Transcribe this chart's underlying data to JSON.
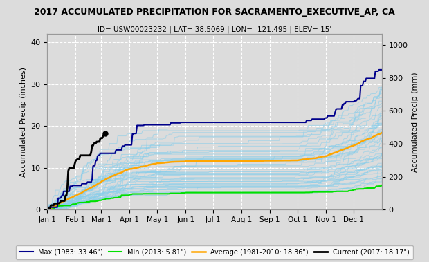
{
  "title": "2017 ACCUMULATED PRECIPITATION FOR SACRAMENTO_EXECUTIVE_AP, CA",
  "subtitle": "ID= USW00023232 | LAT= 38.5069 | LON= -121.495 | ELEV= 15'",
  "ylabel_left": "Accumulated Precip (inches)",
  "ylabel_right": "Accumulated Precip (mm)",
  "ylim_inches": [
    0,
    42
  ],
  "yticks_inches": [
    0,
    10,
    20,
    30,
    40
  ],
  "yticks_mm": [
    0,
    200,
    400,
    600,
    800,
    1000
  ],
  "bg_color": "#dcdcdc",
  "grid_color": "#ffffff",
  "inches_to_mm": 25.4,
  "legend": [
    {
      "label": "Max (1983: 33.46\")",
      "color": "#00008B",
      "lw": 1.5
    },
    {
      "label": "Min (2013: 5.81\")",
      "color": "#00e000",
      "lw": 1.5
    },
    {
      "label": "Average (1981-2010: 18.36\")",
      "color": "#FFA500",
      "lw": 1.8
    },
    {
      "label": "Current (2017: 18.17\")",
      "color": "#000000",
      "lw": 2.0
    }
  ],
  "historical_color": "#87CEEB",
  "historical_alpha": 0.6,
  "num_historical_lines": 50,
  "seed": 42,
  "month_starts_day": [
    1,
    32,
    60,
    91,
    121,
    152,
    182,
    213,
    244,
    274,
    305,
    335
  ],
  "month_labels": [
    "Jan 1",
    "Feb 1",
    "Mar 1",
    "Apr 1",
    "May 1",
    "Jun 1",
    "Jul 1",
    "Aug 1",
    "Sep 1",
    "Oct 1",
    "Nov 1",
    "Dec 1"
  ]
}
